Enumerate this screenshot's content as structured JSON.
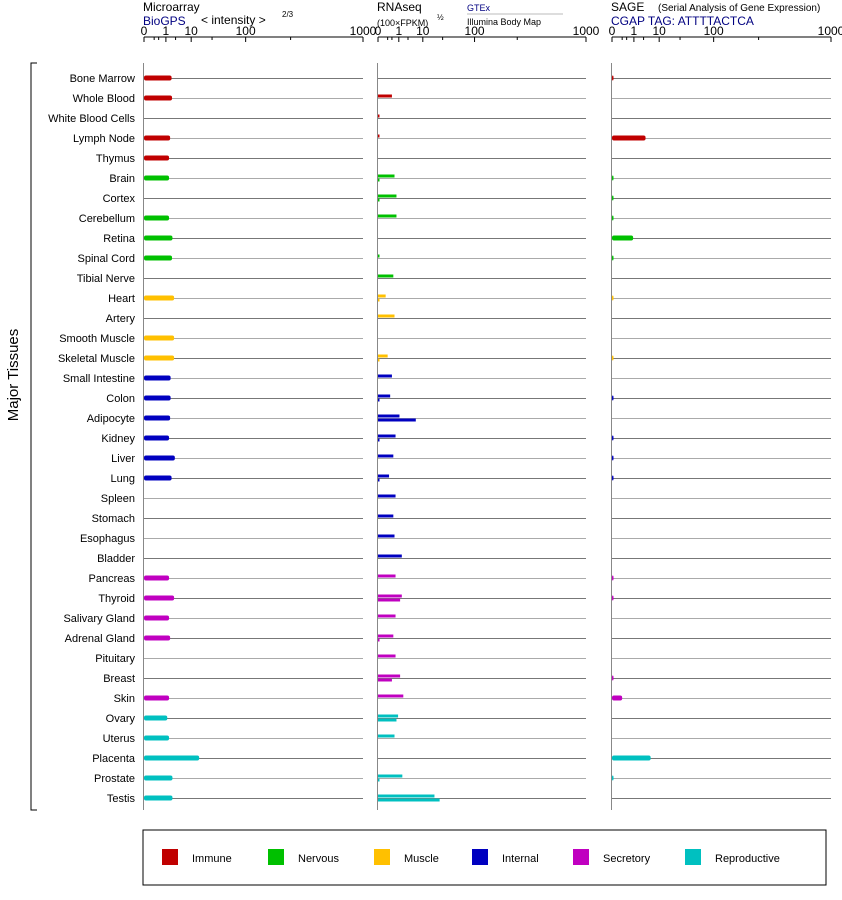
{
  "header": {
    "microarray": {
      "title": "Microarray",
      "source": "BioGPS",
      "scale_label": "< intensity >",
      "scale_exponent": "2/3"
    },
    "rnaseq": {
      "title": "RNAseq",
      "scale_label": "(100×FPKM)",
      "scale_exponent": "½",
      "source_1": "GTEx",
      "source_2": "Illumina Body Map"
    },
    "sage": {
      "title": "SAGE",
      "subtitle": "(Serial Analysis of Gene Expression)",
      "tag": "CGAP TAG: ATTTTACTCA"
    }
  },
  "y_axis_label": "Major Tissues",
  "colors": {
    "Immune": "#c00000",
    "Nervous": "#00c000",
    "Muscle": "#ffc000",
    "Internal": "#0000c0",
    "Secretory": "#c000c0",
    "Reproductive": "#00c0c0",
    "source_text": "#000080"
  },
  "legend": [
    {
      "label": "Immune",
      "color": "#c00000"
    },
    {
      "label": "Nervous",
      "color": "#00c000"
    },
    {
      "label": "Muscle",
      "color": "#ffc000"
    },
    {
      "label": "Internal",
      "color": "#0000c0"
    },
    {
      "label": "Secretory",
      "color": "#c000c0"
    },
    {
      "label": "Reproductive",
      "color": "#00c0c0"
    }
  ],
  "chart_data": {
    "type": "bar",
    "orientation": "horizontal",
    "x_scale": "power 1/3",
    "x_ticks": [
      "0",
      "1",
      "10",
      "100",
      "1000"
    ],
    "xlim": [
      0,
      1000
    ],
    "panels": [
      "Microarray (BioGPS)",
      "RNAseq (GTEx / Illumina Body Map)",
      "SAGE (CGAP)"
    ],
    "categories": [
      "Bone Marrow",
      "Whole Blood",
      "White Blood Cells",
      "Lymph Node",
      "Thymus",
      "Brain",
      "Cortex",
      "Cerebellum",
      "Retina",
      "Spinal Cord",
      "Tibial Nerve",
      "Heart",
      "Artery",
      "Smooth Muscle",
      "Skeletal Muscle",
      "Small Intestine",
      "Colon",
      "Adipocyte",
      "Kidney",
      "Liver",
      "Lung",
      "Spleen",
      "Stomach",
      "Esophagus",
      "Bladder",
      "Pancreas",
      "Thyroid",
      "Salivary Gland",
      "Adrenal Gland",
      "Pituitary",
      "Breast",
      "Skin",
      "Ovary",
      "Uterus",
      "Placenta",
      "Prostate",
      "Testis"
    ],
    "groups": [
      "Immune",
      "Immune",
      "Immune",
      "Immune",
      "Immune",
      "Nervous",
      "Nervous",
      "Nervous",
      "Nervous",
      "Nervous",
      "Nervous",
      "Muscle",
      "Muscle",
      "Muscle",
      "Muscle",
      "Internal",
      "Internal",
      "Internal",
      "Internal",
      "Internal",
      "Internal",
      "Internal",
      "Internal",
      "Internal",
      "Internal",
      "Secretory",
      "Secretory",
      "Secretory",
      "Secretory",
      "Secretory",
      "Secretory",
      "Secretory",
      "Reproductive",
      "Reproductive",
      "Reproductive",
      "Reproductive",
      "Reproductive"
    ],
    "series": [
      {
        "name": "BioGPS",
        "values": [
          2.0,
          2.1,
          null,
          1.7,
          1.5,
          1.5,
          null,
          1.5,
          2.2,
          2.1,
          null,
          2.6,
          null,
          2.6,
          2.6,
          1.8,
          1.8,
          1.7,
          1.5,
          2.8,
          2.0,
          null,
          null,
          null,
          null,
          1.5,
          2.6,
          1.5,
          1.7,
          null,
          null,
          1.5,
          1.2,
          1.5,
          16.0,
          2.2,
          2.2
        ]
      },
      {
        "name": "GTEx",
        "values": [
          null,
          0.3,
          0.0,
          0.0,
          null,
          0.5,
          0.7,
          0.7,
          null,
          0.0,
          0.4,
          0.05,
          0.5,
          null,
          0.1,
          0.3,
          0.2,
          1.1,
          0.6,
          0.4,
          0.15,
          0.6,
          0.4,
          0.5,
          1.5,
          0.6,
          1.5,
          0.6,
          0.4,
          0.6,
          1.2,
          1.8,
          0.9,
          0.5,
          null,
          1.6,
          20.0
        ]
      },
      {
        "name": "Illumina Body Map",
        "values": [
          null,
          null,
          null,
          null,
          null,
          0.0,
          0.0,
          null,
          null,
          null,
          null,
          0.0,
          null,
          null,
          0.0,
          null,
          0.0,
          6.0,
          0.0,
          null,
          0.0,
          null,
          null,
          null,
          null,
          null,
          1.2,
          null,
          0.0,
          null,
          0.3,
          null,
          0.7,
          null,
          null,
          0.0,
          26.0
        ]
      },
      {
        "name": "CGAP SAGE",
        "values": [
          0.0,
          null,
          null,
          3.6,
          null,
          0.0,
          0.0,
          0.0,
          0.9,
          0.0,
          null,
          0.0,
          null,
          null,
          0.0,
          null,
          0.0,
          null,
          0.0,
          0.0,
          0.0,
          null,
          null,
          null,
          null,
          0.0,
          0.0,
          null,
          null,
          null,
          0.0,
          0.1,
          null,
          null,
          5.5,
          0.0,
          null
        ]
      }
    ]
  }
}
